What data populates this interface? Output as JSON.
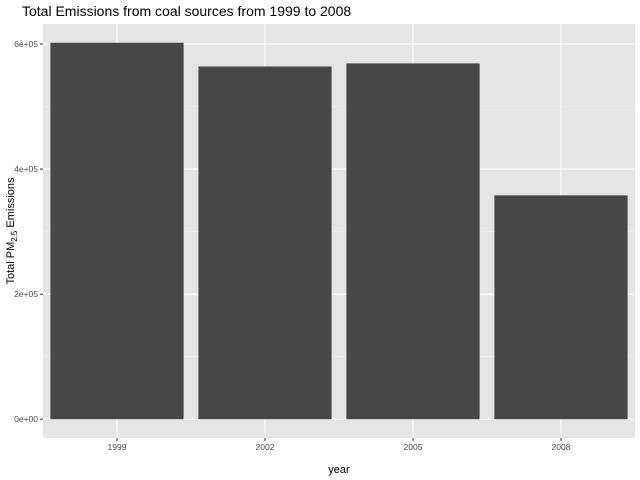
{
  "chart_data": {
    "type": "bar",
    "title": "Total Emissions from coal sources from 1999 to 2008",
    "xlabel": "year",
    "ylabel": {
      "main": "Total PM",
      "subscript": "2.5",
      "suffix": " Emissions"
    },
    "categories": [
      "1999",
      "2002",
      "2005",
      "2008"
    ],
    "values": [
      602000,
      564000,
      569000,
      358000
    ],
    "ylim": [
      -30000,
      632000
    ],
    "yticks": [
      {
        "value": 0,
        "label": "0e+00"
      },
      {
        "value": 200000,
        "label": "2e+05"
      },
      {
        "value": 400000,
        "label": "4e+05"
      },
      {
        "value": 600000,
        "label": "6e+05"
      }
    ],
    "grid": true,
    "legend": "none",
    "colors": {
      "bar": "#474747",
      "panel": "#e5e5e5",
      "grid_major": "#ffffff",
      "grid_minor": "#f1f1f1"
    }
  }
}
